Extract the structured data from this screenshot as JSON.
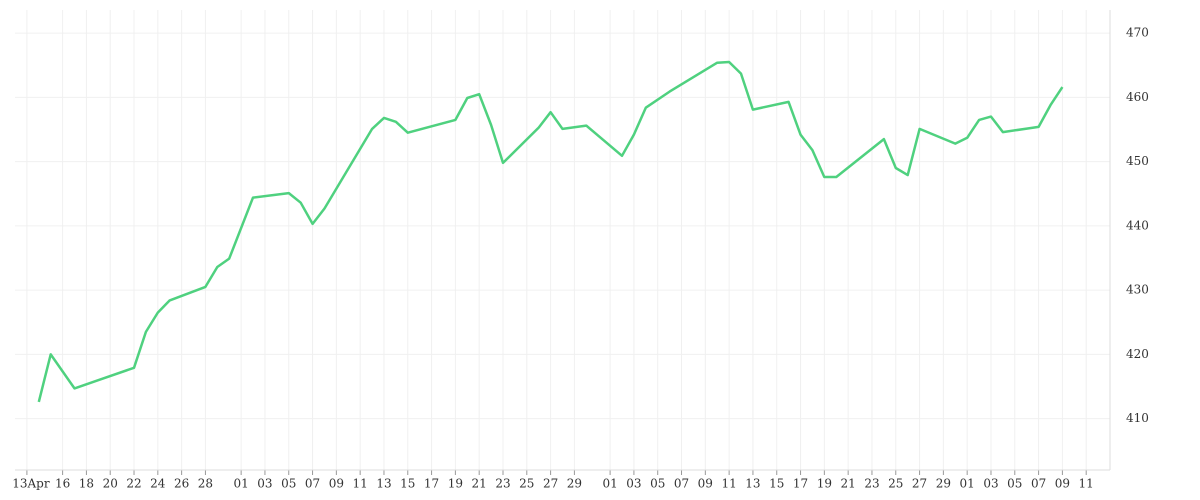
{
  "chart_data": {
    "type": "line",
    "x": [
      "04-14",
      "04-15",
      "04-17",
      "04-22",
      "04-23",
      "04-24",
      "04-25",
      "04-28",
      "04-29",
      "04-30",
      "05-02",
      "05-05",
      "05-06",
      "05-07",
      "05-08",
      "05-12",
      "05-13",
      "05-14",
      "05-15",
      "05-19",
      "05-20",
      "05-21",
      "05-22",
      "05-23",
      "05-26",
      "05-27",
      "05-28",
      "05-30",
      "06-02",
      "06-03",
      "06-04",
      "06-06",
      "06-10",
      "06-11",
      "06-12",
      "06-13",
      "06-16",
      "06-17",
      "06-18",
      "06-19",
      "06-20",
      "06-24",
      "06-25",
      "06-26",
      "06-27",
      "06-30",
      "07-01",
      "07-02",
      "07-03",
      "07-04",
      "07-07",
      "07-08",
      "07-09"
    ],
    "series": [
      {
        "color": "#4fd17f",
        "values": [
          412.6,
          420.0,
          414.7,
          417.9,
          423.5,
          426.5,
          428.4,
          430.5,
          433.6,
          434.9,
          444.4,
          445.1,
          443.6,
          440.3,
          442.7,
          455.1,
          456.8,
          456.2,
          454.5,
          456.5,
          459.9,
          460.5,
          455.7,
          449.8,
          455.3,
          457.7,
          455.1,
          455.6,
          450.9,
          454.2,
          458.4,
          460.9,
          465.4,
          465.5,
          463.7,
          458.1,
          459.3,
          454.2,
          451.8,
          447.6,
          447.6,
          453.5,
          449.0,
          447.9,
          455.1,
          452.8,
          453.7,
          456.5,
          457.0,
          454.6,
          455.4,
          458.8,
          461.6
        ]
      }
    ],
    "xlim": [
      "04-12",
      "07-13"
    ],
    "xticks": [
      {
        "value": "04-13",
        "label": "13Apr"
      },
      {
        "value": "04-16",
        "label": "16"
      },
      {
        "value": "04-18",
        "label": "18"
      },
      {
        "value": "04-20",
        "label": "20"
      },
      {
        "value": "04-22",
        "label": "22"
      },
      {
        "value": "04-24",
        "label": "24"
      },
      {
        "value": "04-26",
        "label": "26"
      },
      {
        "value": "04-28",
        "label": "28"
      },
      {
        "value": "05-01",
        "label": "01"
      },
      {
        "value": "05-03",
        "label": "03"
      },
      {
        "value": "05-05",
        "label": "05"
      },
      {
        "value": "05-07",
        "label": "07"
      },
      {
        "value": "05-09",
        "label": "09"
      },
      {
        "value": "05-11",
        "label": "11"
      },
      {
        "value": "05-13",
        "label": "13"
      },
      {
        "value": "05-15",
        "label": "15"
      },
      {
        "value": "05-17",
        "label": "17"
      },
      {
        "value": "05-19",
        "label": "19"
      },
      {
        "value": "05-21",
        "label": "21"
      },
      {
        "value": "05-23",
        "label": "23"
      },
      {
        "value": "05-25",
        "label": "25"
      },
      {
        "value": "05-27",
        "label": "27"
      },
      {
        "value": "05-29",
        "label": "29"
      },
      {
        "value": "06-01",
        "label": "01"
      },
      {
        "value": "06-03",
        "label": "03"
      },
      {
        "value": "06-05",
        "label": "05"
      },
      {
        "value": "06-07",
        "label": "07"
      },
      {
        "value": "06-09",
        "label": "09"
      },
      {
        "value": "06-11",
        "label": "11"
      },
      {
        "value": "06-13",
        "label": "13"
      },
      {
        "value": "06-15",
        "label": "15"
      },
      {
        "value": "06-17",
        "label": "17"
      },
      {
        "value": "06-19",
        "label": "19"
      },
      {
        "value": "06-21",
        "label": "21"
      },
      {
        "value": "06-23",
        "label": "23"
      },
      {
        "value": "06-25",
        "label": "25"
      },
      {
        "value": "06-27",
        "label": "27"
      },
      {
        "value": "06-29",
        "label": "29"
      },
      {
        "value": "07-01",
        "label": "01"
      },
      {
        "value": "07-03",
        "label": "03"
      },
      {
        "value": "07-05",
        "label": "05"
      },
      {
        "value": "07-07",
        "label": "07"
      },
      {
        "value": "07-09",
        "label": "09"
      },
      {
        "value": "07-11",
        "label": "11"
      }
    ],
    "ylim": [
      402,
      473.6
    ],
    "yticks": [
      410,
      420,
      430,
      440,
      450,
      460,
      470
    ],
    "grid": true
  }
}
